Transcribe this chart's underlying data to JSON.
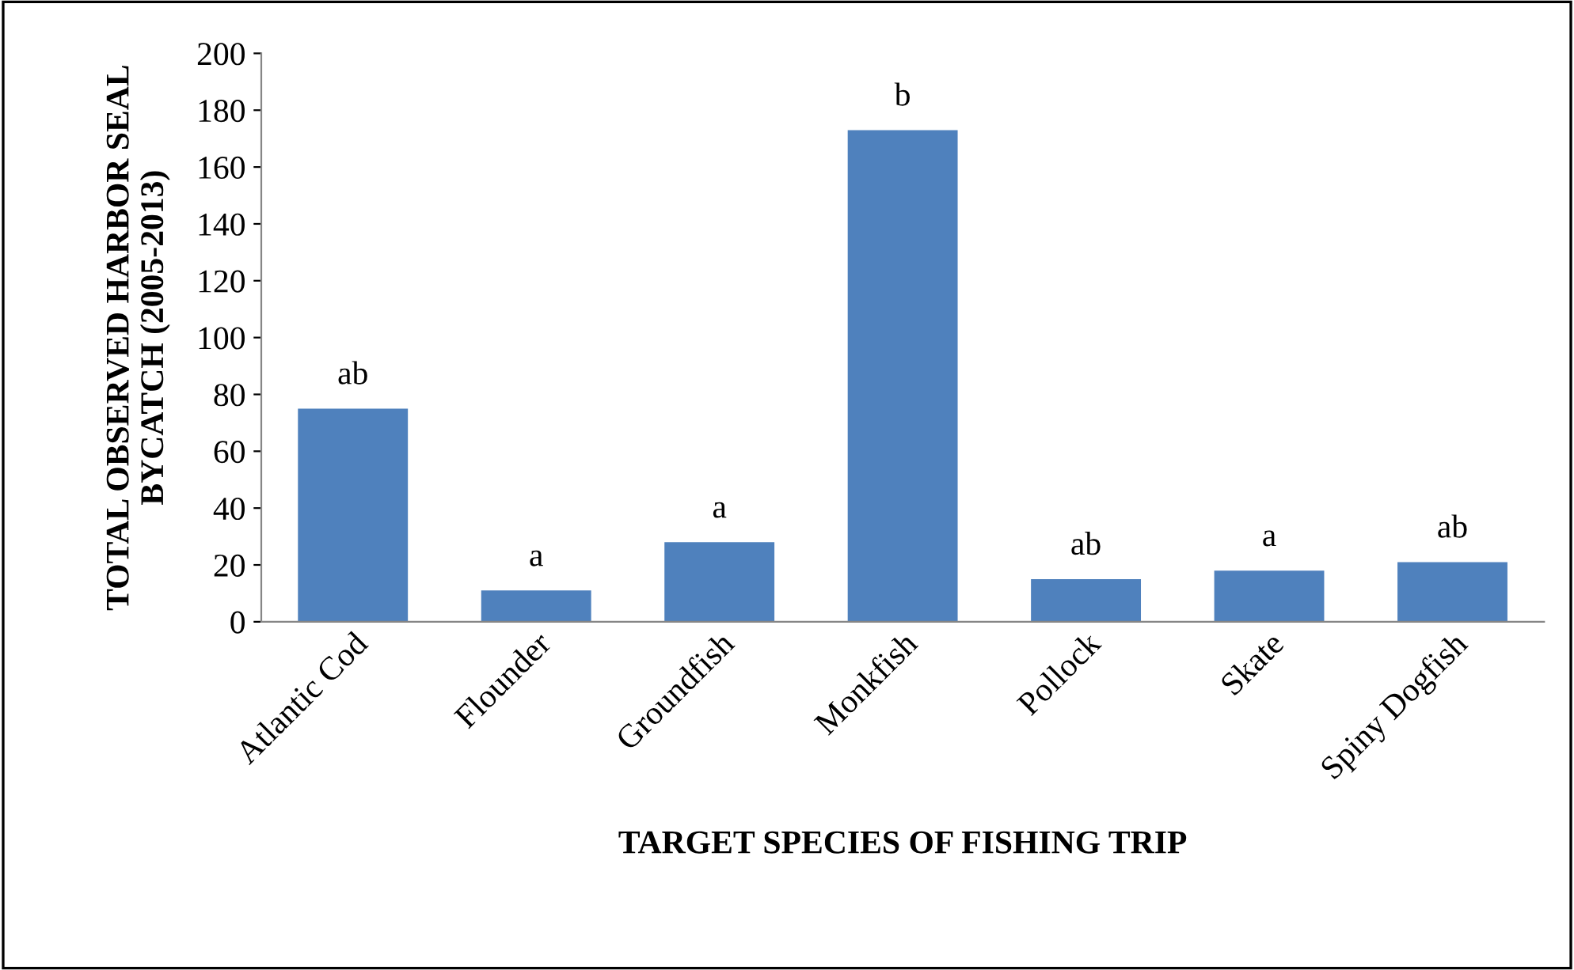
{
  "chart_data": {
    "type": "bar",
    "xlabel": "TARGET SPECIES OF FISHING TRIP",
    "ylabel": "TOTAL OBSERVED HARBOR SEAL\nBYCATCH (2005-2013)",
    "categories": [
      "Atlantic Cod",
      "Flounder",
      "Groundfish",
      "Monkfish",
      "Pollock",
      "Skate",
      "Spiny Dogfish"
    ],
    "values": [
      75,
      11,
      28,
      173,
      15,
      18,
      21
    ],
    "color": "#4f81bd",
    "ylim": [
      0,
      200
    ],
    "yticks": [
      0,
      20,
      40,
      60,
      80,
      100,
      120,
      140,
      160,
      180,
      200
    ],
    "grid": false,
    "legend": false,
    "annotations": [
      {
        "text": "ab",
        "x": "Atlantic Cod",
        "y": 75
      },
      {
        "text": "a",
        "x": "Flounder",
        "y": 11
      },
      {
        "text": "a",
        "x": "Groundfish",
        "y": 28
      },
      {
        "text": "b",
        "x": "Monkfish",
        "y": 173
      },
      {
        "text": "ab",
        "x": "Pollock",
        "y": 15
      },
      {
        "text": "a",
        "x": "Skate",
        "y": 18
      },
      {
        "text": "ab",
        "x": "Spiny Dogfish",
        "y": 21
      }
    ]
  }
}
